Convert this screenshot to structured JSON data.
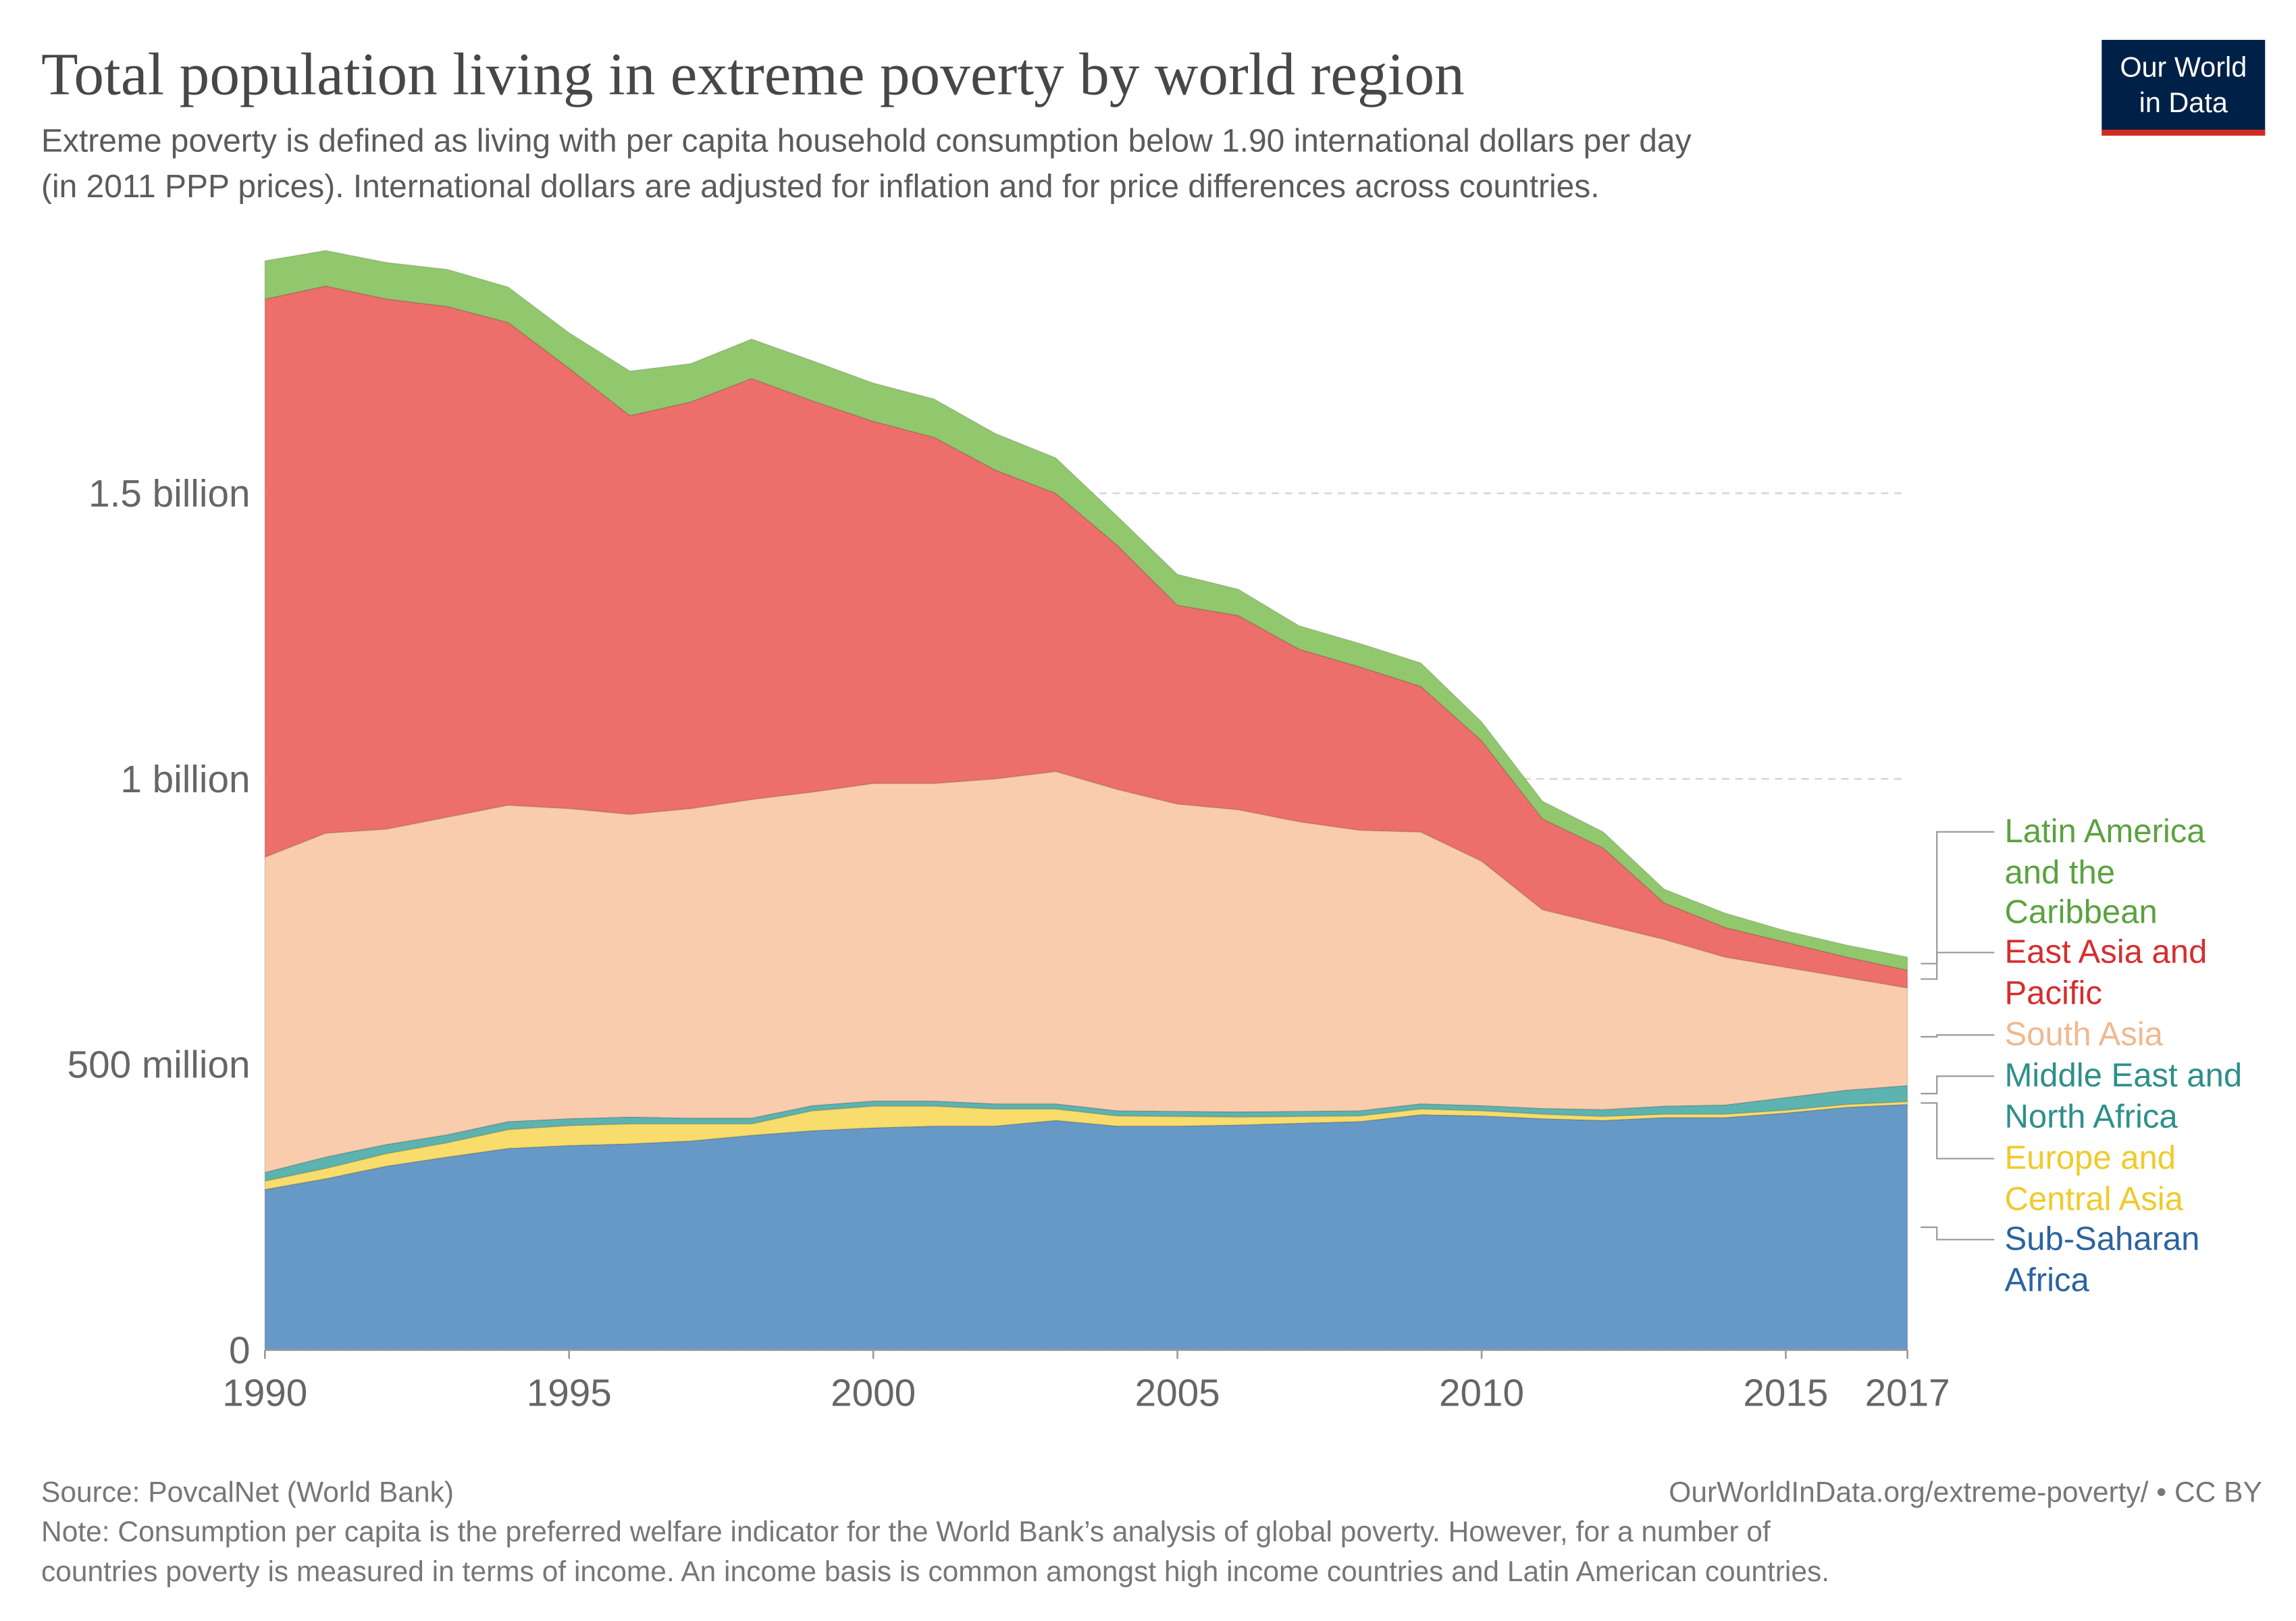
{
  "title": "Total population living in extreme poverty by world region",
  "subtitle": [
    "Extreme poverty is defined as living with per capita household consumption below 1.90 international dollars per day",
    "(in 2011 PPP prices). International dollars are adjusted for inflation and for price differences across countries."
  ],
  "logo": [
    "Our World",
    "in Data"
  ],
  "source": "Source: PovcalNet (World Bank)",
  "link": "OurWorldInData.org/extreme-poverty/ • CC BY",
  "note": [
    "Note: Consumption per capita is the preferred welfare indicator for the World Bank’s analysis of global poverty. However, for a number of",
    "countries poverty is measured in terms of income. An income basis is common amongst high income countries and Latin American countries."
  ],
  "chart_data": {
    "type": "stacked_area",
    "x": [
      1990,
      1991,
      1992,
      1993,
      1994,
      1995,
      1996,
      1997,
      1998,
      1999,
      2000,
      2001,
      2002,
      2003,
      2004,
      2005,
      2006,
      2007,
      2008,
      2009,
      2010,
      2011,
      2012,
      2013,
      2014,
      2015,
      2016,
      2017
    ],
    "xlim": [
      1990,
      2017
    ],
    "xticks": [
      1990,
      1995,
      2000,
      2005,
      2010,
      2015,
      2017
    ],
    "ylim": [
      0,
      2000
    ],
    "yticks": [
      0,
      {
        "value": 500,
        "label": "500 million"
      },
      {
        "value": 1000,
        "label": "1 billion"
      },
      {
        "value": 1500,
        "label": "1.5 billion"
      }
    ],
    "grid": true,
    "series": [
      {
        "name": "Sub-Saharan Africa",
        "color": "#6699c6",
        "label_color": "#2b64a0",
        "values": [
          281,
          300,
          322,
          338,
          353,
          358,
          361,
          366,
          376,
          384,
          389,
          392,
          392,
          402,
          392,
          392,
          394,
          397,
          400,
          412,
          410,
          405,
          402,
          407,
          407,
          415,
          425,
          430
        ]
      },
      {
        "name": "Europe and Central Asia",
        "color": "#f8dc6c",
        "label_color": "#efcb2c",
        "values": [
          15,
          18,
          22,
          25,
          33,
          35,
          35,
          30,
          20,
          35,
          38,
          35,
          30,
          20,
          18,
          17,
          14,
          12,
          10,
          10,
          9,
          8,
          7,
          6,
          6,
          5,
          5,
          5
        ]
      },
      {
        "name": "Middle East and North Africa",
        "color": "#5db3b0",
        "label_color": "#2e8f8a",
        "values": [
          15,
          20,
          16,
          14,
          14,
          12,
          12,
          10,
          10,
          9,
          9,
          9,
          9,
          9,
          9,
          9,
          9,
          9,
          9,
          9,
          9,
          10,
          12,
          14,
          16,
          22,
          25,
          28
        ]
      },
      {
        "name": "South Asia",
        "color": "#f9ccae",
        "label_color": "#f0b98f",
        "values": [
          552,
          567,
          552,
          556,
          554,
          543,
          530,
          542,
          558,
          549,
          556,
          556,
          569,
          582,
          563,
          538,
          529,
          507,
          491,
          476,
          428,
          348,
          324,
          292,
          259,
          228,
          197,
          171
        ]
      },
      {
        "name": "East Asia and Pacific",
        "color": "#ec6f6b",
        "label_color": "#d62e2e",
        "values": [
          977,
          958,
          928,
          894,
          845,
          771,
          698,
          712,
          737,
          685,
          634,
          606,
          541,
          487,
          428,
          348,
          340,
          302,
          286,
          255,
          211,
          159,
          134,
          64,
          52,
          44,
          36,
          31
        ]
      },
      {
        "name": "Latin America and the Caribbean",
        "color": "#92c86d",
        "label_color": "#5ba23f",
        "values": [
          67,
          62,
          64,
          65,
          62,
          62,
          78,
          67,
          69,
          70,
          67,
          67,
          64,
          62,
          51,
          54,
          46,
          41,
          41,
          41,
          33,
          31,
          28,
          24,
          25,
          20,
          21,
          23
        ]
      }
    ]
  }
}
